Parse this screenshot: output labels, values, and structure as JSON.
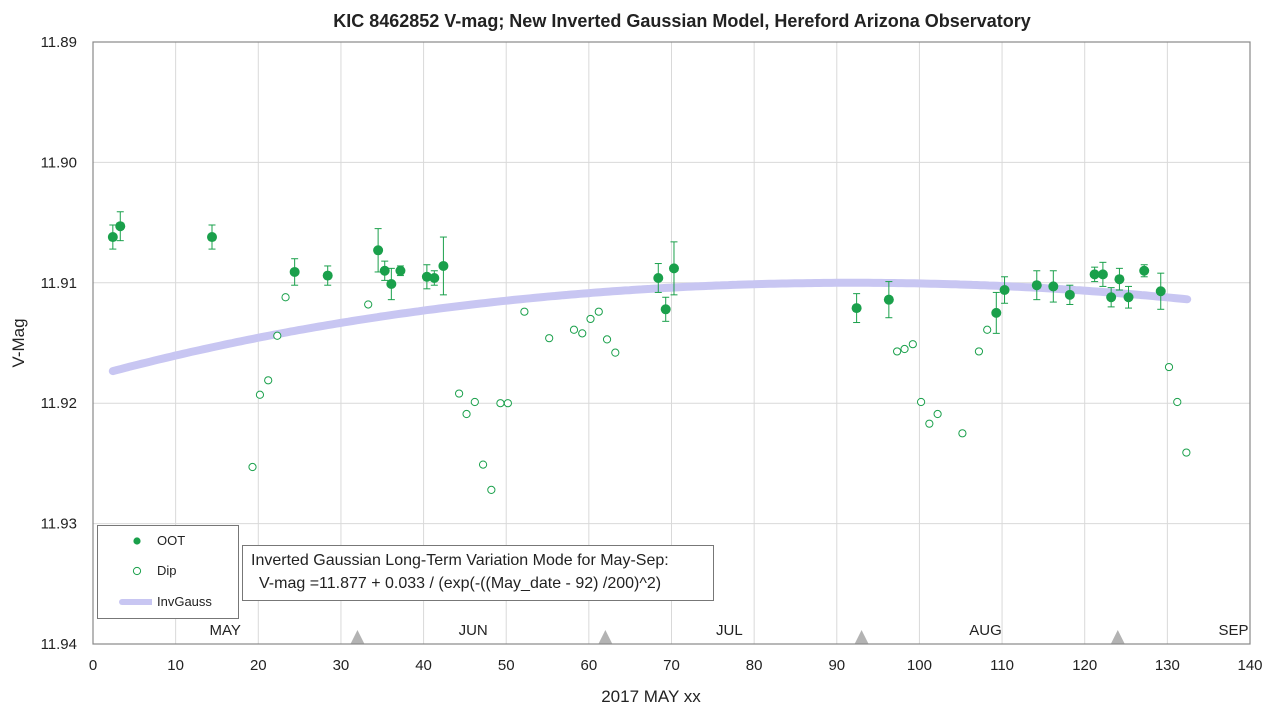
{
  "chart_data": {
    "type": "scatter",
    "title": "KIC 8462852 V-mag; New Inverted Gaussian Model, Hereford Arizona Observatory",
    "xlabel": "2017 MAY xx",
    "ylabel": "V-Mag",
    "xlim": [
      0,
      140
    ],
    "ylim": [
      11.89,
      11.94
    ],
    "y_inverted": true,
    "x_ticks": [
      "0",
      "10",
      "20",
      "30",
      "40",
      "50",
      "60",
      "70",
      "80",
      "90",
      "100",
      "110",
      "120",
      "130",
      "140"
    ],
    "y_ticks": [
      "11.89",
      "11.90",
      "11.91",
      "11.92",
      "11.93",
      "11.94"
    ],
    "grid": true,
    "months": [
      {
        "label": "MAY",
        "x": 16
      },
      {
        "label": "JUN",
        "x": 46
      },
      {
        "label": "JUL",
        "x": 77
      },
      {
        "label": "AUG",
        "x": 108
      },
      {
        "label": "SEP",
        "x": 138
      }
    ],
    "month_markers": [
      32,
      62,
      93,
      124
    ],
    "legend": {
      "position": "bottom-left",
      "entries": [
        {
          "name": "OOT",
          "marker": "filled-circle"
        },
        {
          "name": "Dip",
          "marker": "open-circle"
        },
        {
          "name": "InvGauss",
          "marker": "line"
        }
      ]
    },
    "colors": {
      "points": "#1aa04b",
      "model": "#c8c6f2",
      "grid": "#d9d9d9",
      "axis": "#888888"
    },
    "annotation": {
      "line1": "Inverted Gaussian Long-Term Variation Mode for May-Sep:",
      "line2": "V-mag =11.877 + 0.033 / (exp(-((May_date - 92) /200)^2)"
    },
    "model": {
      "name": "InvGauss",
      "baseline": 11.877,
      "amplitude": 0.033,
      "center": 92,
      "width": 200,
      "x_range": [
        2.4,
        132.5
      ]
    },
    "series": [
      {
        "name": "OOT",
        "points": [
          {
            "x": 2.4,
            "y": 11.9062,
            "err": 0.001
          },
          {
            "x": 3.3,
            "y": 11.9053,
            "err": 0.0012
          },
          {
            "x": 14.4,
            "y": 11.9062,
            "err": 0.001
          },
          {
            "x": 24.4,
            "y": 11.9091,
            "err": 0.0011
          },
          {
            "x": 28.4,
            "y": 11.9094,
            "err": 0.0008
          },
          {
            "x": 34.5,
            "y": 11.9073,
            "err": 0.0018
          },
          {
            "x": 35.3,
            "y": 11.909,
            "err": 0.0008
          },
          {
            "x": 36.1,
            "y": 11.9101,
            "err": 0.0013
          },
          {
            "x": 37.2,
            "y": 11.909,
            "err": 0.0004
          },
          {
            "x": 40.4,
            "y": 11.9095,
            "err": 0.001
          },
          {
            "x": 41.3,
            "y": 11.9096,
            "err": 0.0006
          },
          {
            "x": 42.4,
            "y": 11.9086,
            "err": 0.0024
          },
          {
            "x": 68.4,
            "y": 11.9096,
            "err": 0.0012
          },
          {
            "x": 69.3,
            "y": 11.9122,
            "err": 0.001
          },
          {
            "x": 70.3,
            "y": 11.9088,
            "err": 0.0022
          },
          {
            "x": 92.4,
            "y": 11.9121,
            "err": 0.0012
          },
          {
            "x": 96.3,
            "y": 11.9114,
            "err": 0.0015
          },
          {
            "x": 109.3,
            "y": 11.9125,
            "err": 0.0017
          },
          {
            "x": 110.3,
            "y": 11.9106,
            "err": 0.0011
          },
          {
            "x": 114.2,
            "y": 11.9102,
            "err": 0.0012
          },
          {
            "x": 116.2,
            "y": 11.9103,
            "err": 0.0013
          },
          {
            "x": 118.2,
            "y": 11.911,
            "err": 0.0008
          },
          {
            "x": 121.2,
            "y": 11.9093,
            "err": 0.0006
          },
          {
            "x": 122.2,
            "y": 11.9093,
            "err": 0.001
          },
          {
            "x": 123.2,
            "y": 11.9112,
            "err": 0.0008
          },
          {
            "x": 124.2,
            "y": 11.9097,
            "err": 0.0009
          },
          {
            "x": 125.3,
            "y": 11.9112,
            "err": 0.0009
          },
          {
            "x": 127.2,
            "y": 11.909,
            "err": 0.0005
          },
          {
            "x": 129.2,
            "y": 11.9107,
            "err": 0.0015
          }
        ]
      },
      {
        "name": "Dip",
        "points": [
          {
            "x": 19.3,
            "y": 11.9253
          },
          {
            "x": 20.2,
            "y": 11.9193
          },
          {
            "x": 21.2,
            "y": 11.9181
          },
          {
            "x": 22.3,
            "y": 11.9144
          },
          {
            "x": 23.3,
            "y": 11.9112
          },
          {
            "x": 33.3,
            "y": 11.9118
          },
          {
            "x": 44.3,
            "y": 11.9192
          },
          {
            "x": 45.2,
            "y": 11.9209
          },
          {
            "x": 46.2,
            "y": 11.9199
          },
          {
            "x": 47.2,
            "y": 11.9251
          },
          {
            "x": 48.2,
            "y": 11.9272
          },
          {
            "x": 49.3,
            "y": 11.92
          },
          {
            "x": 50.2,
            "y": 11.92
          },
          {
            "x": 52.2,
            "y": 11.9124
          },
          {
            "x": 55.2,
            "y": 11.9146
          },
          {
            "x": 58.2,
            "y": 11.9139
          },
          {
            "x": 59.2,
            "y": 11.9142
          },
          {
            "x": 60.2,
            "y": 11.913
          },
          {
            "x": 61.2,
            "y": 11.9124
          },
          {
            "x": 62.2,
            "y": 11.9147
          },
          {
            "x": 63.2,
            "y": 11.9158
          },
          {
            "x": 97.3,
            "y": 11.9157
          },
          {
            "x": 98.2,
            "y": 11.9155
          },
          {
            "x": 99.2,
            "y": 11.9151
          },
          {
            "x": 100.2,
            "y": 11.9199
          },
          {
            "x": 101.2,
            "y": 11.9217
          },
          {
            "x": 102.2,
            "y": 11.9209
          },
          {
            "x": 105.2,
            "y": 11.9225
          },
          {
            "x": 107.2,
            "y": 11.9157
          },
          {
            "x": 108.2,
            "y": 11.9139
          },
          {
            "x": 130.2,
            "y": 11.917
          },
          {
            "x": 131.2,
            "y": 11.9199
          },
          {
            "x": 132.3,
            "y": 11.9241
          }
        ]
      }
    ]
  }
}
